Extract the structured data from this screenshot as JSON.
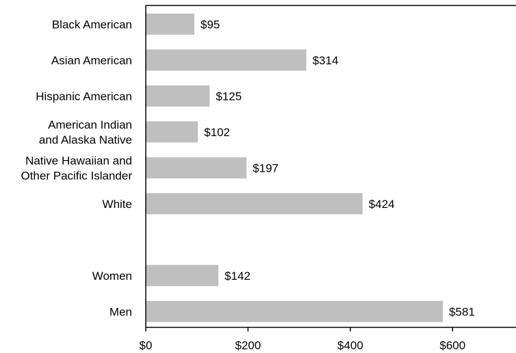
{
  "chart_data": {
    "type": "bar",
    "orientation": "horizontal",
    "categories": [
      [
        "Black American"
      ],
      [
        "Asian American"
      ],
      [
        "Hispanic American"
      ],
      [
        "American Indian",
        "and Alaska Native"
      ],
      [
        "Native Hawaiian and",
        "Other Pacific Islander"
      ],
      [
        "White"
      ],
      [],
      [
        "Women"
      ],
      [
        "Men"
      ]
    ],
    "values": [
      95,
      314,
      125,
      102,
      197,
      424,
      null,
      142,
      581
    ],
    "data_labels": [
      "$95",
      "$314",
      "$125",
      "$102",
      "$197",
      "$424",
      "",
      "$142",
      "$581"
    ],
    "xlim": [
      0,
      700
    ],
    "xticks": [
      0,
      200,
      400,
      600
    ],
    "xtick_labels": [
      "$0",
      "$200",
      "$400",
      "$600"
    ],
    "title": "",
    "xlabel": "",
    "ylabel": "",
    "grid": false,
    "legend": "none",
    "bar_color": "#bfbfbf",
    "axis_color": "#000000"
  }
}
